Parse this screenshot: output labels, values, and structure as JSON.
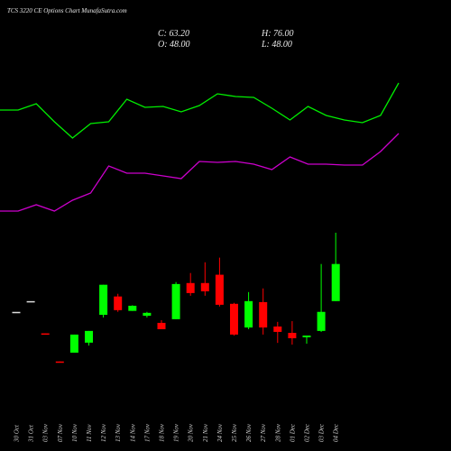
{
  "chart_data": {
    "type": "candlestick",
    "title": "TCS 3220 CE Options Chart MunafaSutra.com",
    "summary": {
      "close": "C: 63.20",
      "high": "H: 76.00",
      "open": "O: 48.00",
      "low": "L: 48.00"
    },
    "categories": [
      "30 Oct",
      "31 Oct",
      "03 Nov",
      "07 Nov",
      "10 Nov",
      "11 Nov",
      "12 Nov",
      "13 Nov",
      "14 Nov",
      "17 Nov",
      "18 Nov",
      "19 Nov",
      "20 Nov",
      "21 Nov",
      "24 Nov",
      "25 Nov",
      "26 Nov",
      "27 Nov",
      "28 Nov",
      "01 Dec",
      "02 Dec",
      "03 Dec",
      "04 Dec"
    ],
    "open": [
      43.6,
      48,
      34.8,
      23.3,
      26.9,
      31,
      42.4,
      49.9,
      44,
      42,
      39.1,
      40.6,
      55.4,
      55.4,
      58.8,
      46.9,
      37.2,
      47.6,
      37.6,
      35,
      33.2,
      35.8,
      48
    ],
    "high": [
      43.6,
      48,
      34.8,
      23.3,
      34.3,
      35.8,
      54.7,
      51,
      46.3,
      43.6,
      40.2,
      55.8,
      59.5,
      63.9,
      65.8,
      47.3,
      51.7,
      53.2,
      39.5,
      39.8,
      33.9,
      63.2,
      76
    ],
    "low": [
      43.6,
      48,
      34.7,
      23.2,
      26.9,
      29.8,
      41.3,
      43.6,
      44,
      41.3,
      36.5,
      40.6,
      50.2,
      50.2,
      45.8,
      33.9,
      36.5,
      34.3,
      30.9,
      30.2,
      30.6,
      35.4,
      48
    ],
    "close": [
      43.6,
      48,
      34.7,
      23.2,
      34.3,
      35.8,
      54.7,
      44.3,
      46.1,
      43.2,
      36.5,
      55,
      51.3,
      52,
      46.5,
      34.3,
      48,
      37.2,
      35.4,
      32.8,
      33.9,
      43.6,
      63.2
    ],
    "up_color": "#00ff00",
    "down_color": "#ff0000",
    "flat_color": "#dddddd",
    "series": [
      {
        "color": "#00ee00",
        "values": [
          178,
          178,
          185,
          165,
          147,
          163,
          165,
          190,
          181,
          182,
          176,
          183,
          196,
          193,
          192,
          180,
          167,
          182,
          172,
          167,
          164,
          172,
          208
        ]
      },
      {
        "color": "#cc00cc",
        "values": [
          66,
          66,
          73,
          66,
          78,
          86,
          116,
          108,
          108,
          105,
          102,
          121,
          120,
          121,
          118,
          112,
          126,
          118,
          118,
          117,
          117,
          132,
          152
        ]
      }
    ]
  }
}
